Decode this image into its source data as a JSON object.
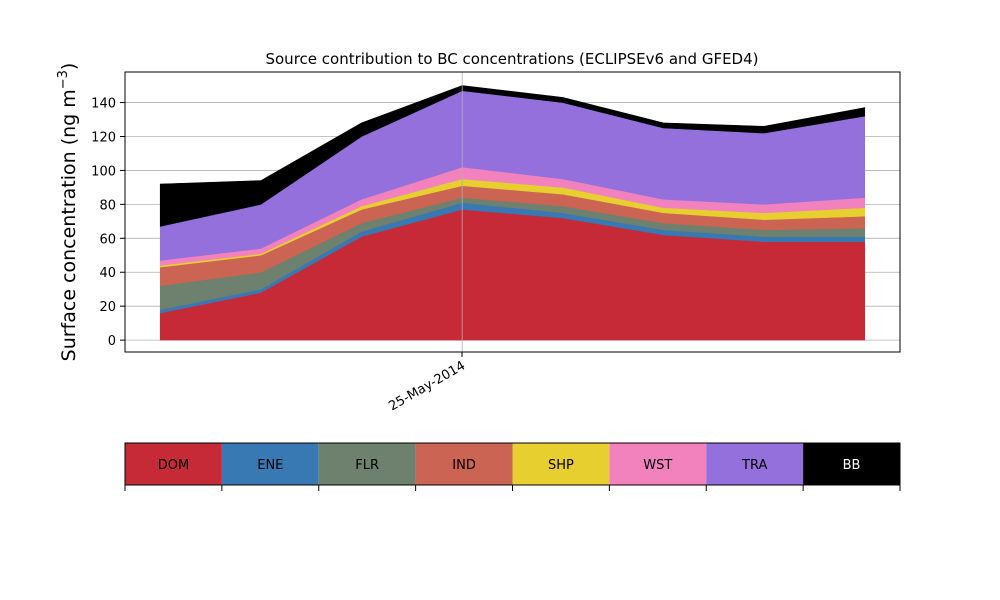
{
  "chart_data": {
    "type": "area",
    "stacked": true,
    "title": "Source contribution to BC concentrations (ECLIPSEv6 and GFED4)",
    "ylabel_main": "Surface concentration (ng m",
    "ylabel_sup": "−3",
    "ylabel_close": ")",
    "xlabel": "",
    "x_tick": {
      "index": 3,
      "label": "25-May-2014"
    },
    "x": [
      0,
      1,
      2,
      3,
      4,
      5,
      6,
      7
    ],
    "ylim": [
      -7,
      158
    ],
    "yticks": [
      0,
      20,
      40,
      60,
      80,
      100,
      120,
      140
    ],
    "grid": true,
    "legend_placement": "below",
    "series": [
      {
        "name": "DOM",
        "color": "#c62a36",
        "values": [
          16,
          28,
          61,
          77,
          72,
          62,
          58,
          58
        ]
      },
      {
        "name": "ENE",
        "color": "#3878b3",
        "values": [
          2,
          2,
          3,
          4,
          3,
          3,
          3,
          3
        ]
      },
      {
        "name": "FLR",
        "color": "#6e806e",
        "values": [
          14,
          10,
          5,
          3,
          4,
          4,
          4,
          5
        ]
      },
      {
        "name": "IND",
        "color": "#cb6452",
        "values": [
          11,
          10,
          8,
          7,
          7,
          6,
          6,
          7
        ]
      },
      {
        "name": "SHP",
        "color": "#e6cf2e",
        "values": [
          1,
          1,
          2,
          4,
          4,
          3,
          4,
          5
        ]
      },
      {
        "name": "WST",
        "color": "#f282be",
        "values": [
          3,
          3,
          4,
          7,
          5,
          5,
          5,
          6
        ]
      },
      {
        "name": "TRA",
        "color": "#9370dc",
        "values": [
          20,
          26,
          37,
          45,
          45,
          42,
          42,
          48
        ]
      },
      {
        "name": "BB",
        "color": "#000000",
        "values": [
          25,
          14,
          8,
          3,
          3,
          3,
          4,
          5
        ]
      }
    ]
  }
}
